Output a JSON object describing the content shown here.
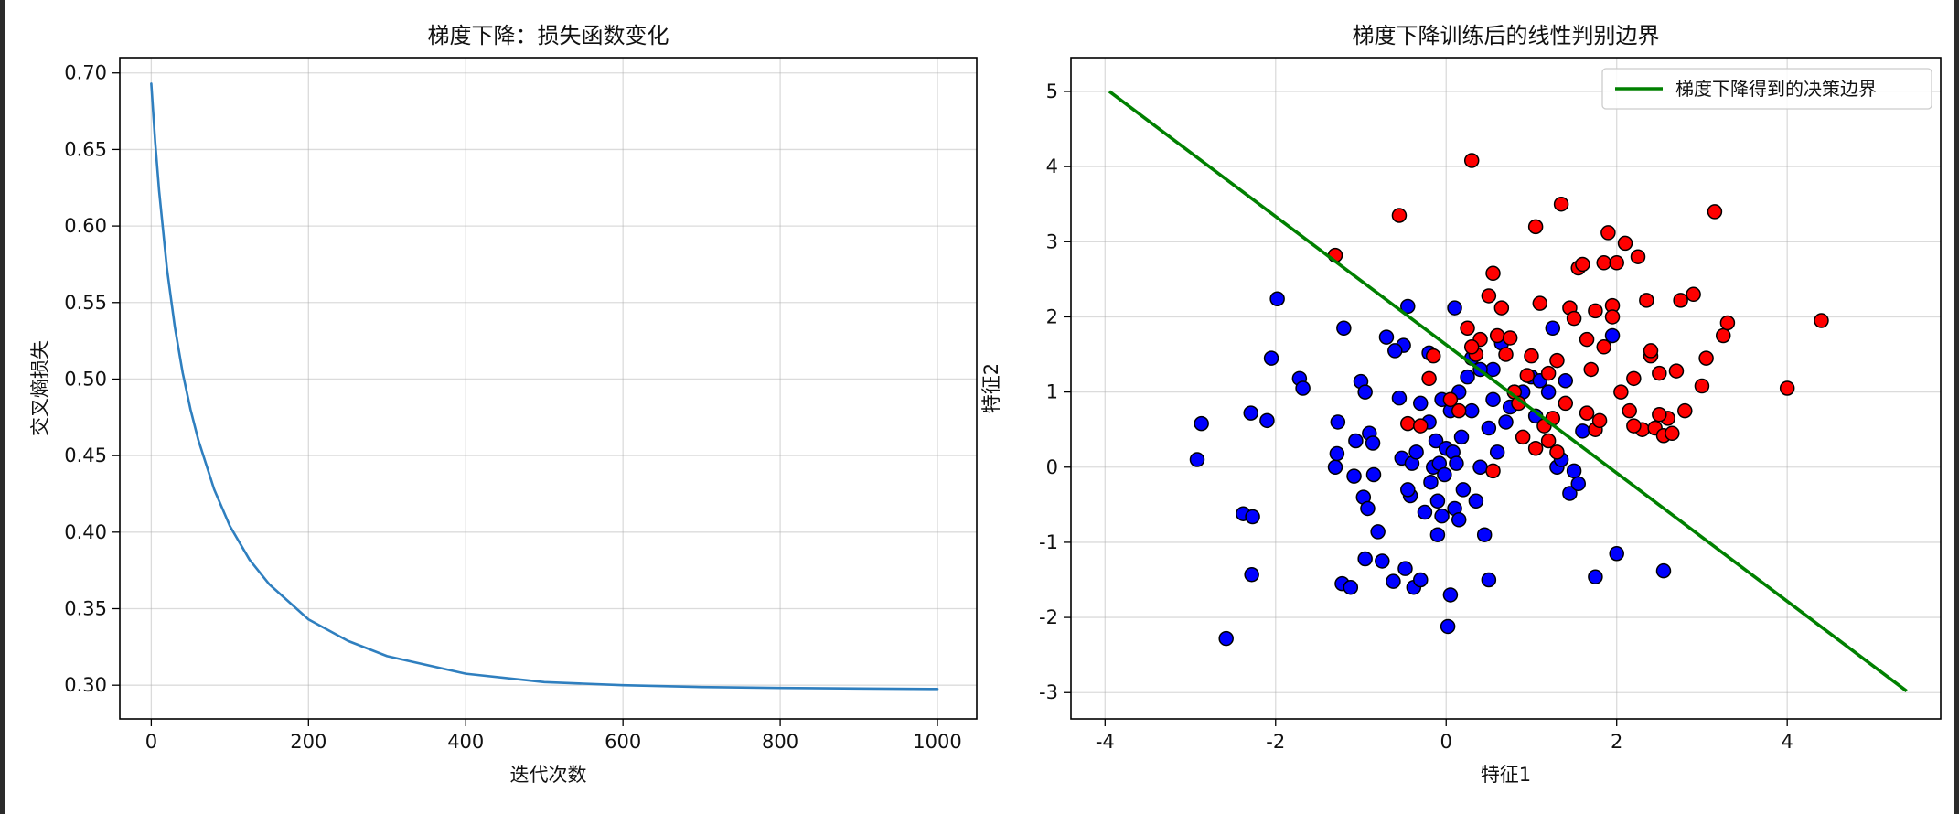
{
  "colors": {
    "loss_line": "#2f7fbf",
    "boundary_line": "#008000",
    "class_0": "#0000ff",
    "class_1": "#ff0000",
    "marker_edge": "#000000"
  },
  "chart_data": [
    {
      "type": "line",
      "title": "梯度下降：损失函数变化",
      "xlabel": "迭代次数",
      "ylabel": "交叉熵损失",
      "xlim": [
        -40,
        1050
      ],
      "ylim": [
        0.278,
        0.71
      ],
      "xticks": [
        0,
        200,
        400,
        600,
        800,
        1000
      ],
      "xtick_labels": [
        "0",
        "200",
        "400",
        "600",
        "800",
        "1000"
      ],
      "yticks": [
        0.3,
        0.35,
        0.4,
        0.45,
        0.5,
        0.55,
        0.6,
        0.65,
        0.7
      ],
      "ytick_labels": [
        "0.30",
        "0.35",
        "0.40",
        "0.45",
        "0.50",
        "0.55",
        "0.60",
        "0.65",
        "0.70"
      ],
      "grid": true,
      "series": [
        {
          "x": [
            0,
            5,
            10,
            20,
            30,
            40,
            50,
            60,
            80,
            100,
            125,
            150,
            200,
            250,
            300,
            400,
            500,
            600,
            700,
            800,
            900,
            1000
          ],
          "y": [
            0.693,
            0.655,
            0.623,
            0.572,
            0.534,
            0.504,
            0.48,
            0.46,
            0.428,
            0.404,
            0.382,
            0.366,
            0.343,
            0.329,
            0.319,
            0.3075,
            0.302,
            0.3,
            0.2988,
            0.2982,
            0.2978,
            0.2975
          ]
        }
      ]
    },
    {
      "type": "scatter",
      "title": "梯度下降训练后的线性判别边界",
      "xlabel": "特征1",
      "ylabel": "特征2",
      "xlim": [
        -4.4,
        5.8
      ],
      "ylim": [
        -3.35,
        5.45
      ],
      "xticks": [
        -4,
        -2,
        0,
        2,
        4
      ],
      "xtick_labels": [
        "-4",
        "-2",
        "0",
        "2",
        "4"
      ],
      "yticks": [
        -3,
        -2,
        -1,
        0,
        1,
        2,
        3,
        4,
        5
      ],
      "ytick_labels": [
        "-3",
        "-2",
        "-1",
        "0",
        "1",
        "2",
        "3",
        "4",
        "5"
      ],
      "grid": true,
      "legend": {
        "placement": "top-right",
        "entries": [
          "梯度下降得到的决策边界"
        ]
      },
      "boundary": {
        "x": [
          -3.95,
          5.4
        ],
        "y": [
          5.0,
          -2.98
        ]
      },
      "series": [
        {
          "class": 0,
          "x": [
            -2.92,
            -2.87,
            -2.58,
            -2.38,
            -2.29,
            -2.27,
            -2.28,
            -2.1,
            -2.05,
            -1.98,
            -1.72,
            -1.68,
            -1.3,
            -1.28,
            -1.27,
            -1.22,
            -1.2,
            -1.12,
            -1.08,
            -1.06,
            -1.0,
            -0.97,
            -0.95,
            -0.92,
            -0.9,
            -0.86,
            -0.8,
            -0.75,
            -0.7,
            -0.62,
            -0.55,
            -0.52,
            -0.5,
            -0.48,
            -0.45,
            -0.42,
            -0.4,
            -0.38,
            -0.35,
            -0.3,
            -0.25,
            -0.2,
            -0.18,
            -0.15,
            -0.12,
            -0.1,
            -0.08,
            -0.05,
            -0.02,
            0.0,
            0.02,
            0.05,
            0.08,
            0.1,
            0.12,
            0.15,
            0.18,
            0.2,
            0.25,
            0.3,
            0.35,
            0.4,
            0.45,
            0.5,
            0.55,
            0.6,
            0.65,
            0.7,
            0.75,
            0.8,
            0.9,
            1.0,
            1.05,
            1.1,
            1.2,
            1.3,
            1.4,
            1.45,
            1.5,
            1.55,
            1.6,
            1.75,
            1.95,
            2.0,
            2.55,
            -0.2,
            0.05,
            -0.6,
            0.4,
            0.1,
            -0.3,
            0.3,
            -0.85,
            -0.95,
            1.25,
            0.55,
            -0.1,
            0.15,
            -0.45,
            -0.05,
            0.5,
            1.35
          ],
          "y": [
            0.1,
            0.58,
            -2.28,
            -0.62,
            0.72,
            -0.66,
            -1.43,
            0.62,
            1.45,
            2.24,
            1.18,
            1.05,
            0.0,
            0.18,
            0.6,
            -1.55,
            1.85,
            -1.6,
            -0.12,
            0.35,
            1.14,
            -0.4,
            1.0,
            -0.55,
            0.45,
            0.32,
            -0.86,
            -1.25,
            1.73,
            -1.52,
            0.92,
            0.12,
            1.62,
            -1.35,
            2.14,
            -0.38,
            0.05,
            -1.6,
            0.2,
            -1.5,
            -0.6,
            1.52,
            -0.2,
            0.0,
            0.35,
            -0.45,
            0.05,
            0.9,
            -0.1,
            0.25,
            -2.12,
            -1.7,
            0.2,
            -0.55,
            0.05,
            -0.7,
            0.4,
            -0.3,
            1.2,
            0.75,
            -0.45,
            0.0,
            -0.9,
            0.52,
            1.3,
            0.2,
            1.65,
            0.6,
            0.8,
            1.0,
            1.0,
            1.2,
            0.68,
            1.15,
            1.0,
            0.0,
            1.15,
            -0.35,
            -0.05,
            -0.22,
            0.48,
            -1.46,
            1.75,
            -1.15,
            -1.38,
            0.6,
            0.75,
            1.55,
            1.3,
            2.12,
            0.85,
            1.45,
            -0.1,
            -1.22,
            1.85,
            0.9,
            -0.9,
            1.0,
            -0.3,
            -0.65,
            -1.5,
            0.1
          ]
        },
        {
          "class": 1,
          "x": [
            -1.3,
            -0.55,
            -0.45,
            -0.3,
            -0.2,
            0.05,
            0.15,
            0.25,
            0.3,
            0.35,
            0.4,
            0.5,
            0.55,
            0.6,
            0.65,
            0.7,
            0.75,
            0.8,
            0.9,
            0.95,
            1.0,
            1.05,
            1.1,
            1.15,
            1.2,
            1.25,
            1.3,
            1.35,
            1.4,
            1.45,
            1.5,
            1.55,
            1.6,
            1.65,
            1.7,
            1.75,
            1.8,
            1.85,
            1.9,
            1.95,
            2.0,
            2.05,
            2.1,
            2.15,
            2.2,
            2.25,
            2.3,
            2.35,
            2.4,
            2.45,
            2.5,
            2.55,
            2.6,
            2.65,
            2.7,
            2.75,
            2.8,
            2.9,
            3.0,
            3.05,
            3.15,
            3.25,
            3.3,
            4.0,
            4.4,
            1.85,
            2.5,
            1.2,
            1.75,
            0.55,
            1.65,
            1.95,
            2.4,
            0.85,
            -0.15,
            0.3,
            1.3,
            2.2,
            1.05
          ],
          "y": [
            2.82,
            3.35,
            0.58,
            0.55,
            1.18,
            0.9,
            0.75,
            1.85,
            4.08,
            1.5,
            1.7,
            2.28,
            2.58,
            1.75,
            2.12,
            1.5,
            1.72,
            1.0,
            0.4,
            1.22,
            1.48,
            3.2,
            2.18,
            0.55,
            1.25,
            0.65,
            1.42,
            3.5,
            0.85,
            2.12,
            1.98,
            2.65,
            2.7,
            1.7,
            1.3,
            0.5,
            0.62,
            2.72,
            3.12,
            2.15,
            2.72,
            1.0,
            2.98,
            0.75,
            1.18,
            2.8,
            0.5,
            2.22,
            1.48,
            0.52,
            1.25,
            0.42,
            0.65,
            0.45,
            1.28,
            2.22,
            0.75,
            2.3,
            1.08,
            1.45,
            3.4,
            1.75,
            1.92,
            1.05,
            1.95,
            1.6,
            0.7,
            0.35,
            2.08,
            -0.05,
            0.72,
            2.0,
            1.55,
            0.85,
            1.48,
            1.6,
            0.2,
            0.55,
            0.25
          ]
        }
      ]
    }
  ]
}
